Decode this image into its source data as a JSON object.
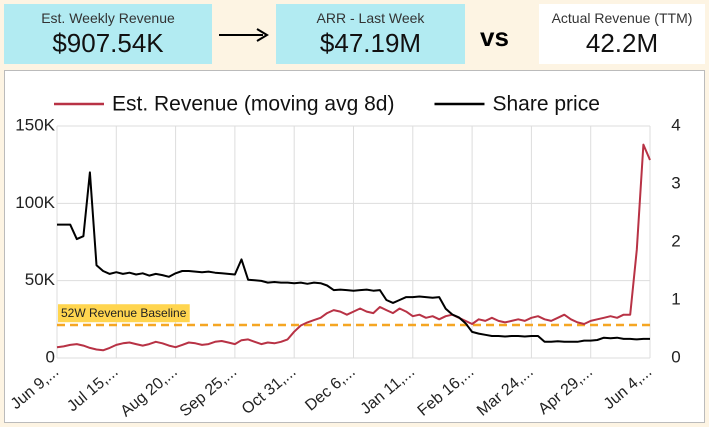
{
  "header": {
    "kpis": [
      {
        "label": "Est. Weekly Revenue",
        "value": "$907.54K"
      },
      {
        "label": "ARR - Last Week",
        "value": "$47.19M"
      },
      {
        "label": "Actual Revenue (TTM)",
        "value": "42.2M"
      }
    ],
    "vs": "vs"
  },
  "chart_data": {
    "type": "line",
    "categories": [
      "Jun 9,...",
      null,
      null,
      null,
      null,
      null,
      null,
      null,
      null,
      "Jul 15,...",
      null,
      null,
      null,
      null,
      null,
      null,
      null,
      null,
      "Aug 20,...",
      null,
      null,
      null,
      null,
      null,
      null,
      null,
      null,
      "Sep 25,...",
      null,
      null,
      null,
      null,
      null,
      null,
      null,
      null,
      "Oct 31,...",
      null,
      null,
      null,
      null,
      null,
      null,
      null,
      null,
      "Dec 6,...",
      null,
      null,
      null,
      null,
      null,
      null,
      null,
      null,
      "Jan 11,...",
      null,
      null,
      null,
      null,
      null,
      null,
      null,
      null,
      "Feb 16,...",
      null,
      null,
      null,
      null,
      null,
      null,
      null,
      null,
      "Mar 24,...",
      null,
      null,
      null,
      null,
      null,
      null,
      null,
      null,
      "Apr 29,...",
      null,
      null,
      null,
      null,
      null,
      null,
      null,
      null,
      "Jun 4,..."
    ],
    "series": [
      {
        "name": "Est. Revenue (moving avg 8d)",
        "color": "#b83245",
        "values": [
          7000,
          7500,
          8500,
          9000,
          8000,
          6500,
          5500,
          5000,
          6500,
          8500,
          9500,
          10000,
          9000,
          8000,
          9000,
          10500,
          9500,
          8000,
          7000,
          8500,
          10000,
          9500,
          8500,
          9000,
          10500,
          11000,
          10000,
          9000,
          11500,
          12000,
          10500,
          9000,
          10000,
          9500,
          10500,
          12000,
          17000,
          21000,
          23000,
          24500,
          26000,
          29000,
          31000,
          30000,
          28000,
          30000,
          32000,
          30000,
          29000,
          33000,
          31000,
          29000,
          32000,
          30000,
          27000,
          28000,
          26000,
          27000,
          25000,
          27000,
          28000,
          26000,
          24000,
          22000,
          25000,
          24000,
          26000,
          24000,
          23000,
          24000,
          25000,
          24000,
          26000,
          27000,
          25000,
          24000,
          26000,
          28000,
          25000,
          23000,
          22000,
          24000,
          25000,
          26000,
          27000,
          26000,
          28000,
          28000,
          70000,
          138000,
          128000
        ]
      },
      {
        "name": "Share price",
        "color": "#000000",
        "axis": "y2",
        "values": [
          2.3,
          2.3,
          2.3,
          2.05,
          2.1,
          3.2,
          1.6,
          1.5,
          1.45,
          1.48,
          1.45,
          1.47,
          1.44,
          1.46,
          1.42,
          1.45,
          1.43,
          1.4,
          1.46,
          1.5,
          1.5,
          1.49,
          1.48,
          1.49,
          1.47,
          1.46,
          1.45,
          1.44,
          1.7,
          1.35,
          1.34,
          1.33,
          1.3,
          1.31,
          1.3,
          1.3,
          1.29,
          1.3,
          1.28,
          1.3,
          1.29,
          1.25,
          1.17,
          1.18,
          1.17,
          1.16,
          1.17,
          1.18,
          1.16,
          1.17,
          1.0,
          0.95,
          1.0,
          1.05,
          1.05,
          1.06,
          1.05,
          1.04,
          1.05,
          0.85,
          0.75,
          0.7,
          0.6,
          0.45,
          0.42,
          0.4,
          0.38,
          0.38,
          0.37,
          0.38,
          0.38,
          0.37,
          0.38,
          0.38,
          0.28,
          0.28,
          0.29,
          0.28,
          0.28,
          0.28,
          0.3,
          0.3,
          0.31,
          0.35,
          0.34,
          0.35,
          0.33,
          0.33,
          0.32,
          0.33,
          0.33
        ]
      }
    ],
    "ylim": [
      0,
      150000
    ],
    "yticks": [
      {
        "value": 0,
        "label": "0"
      },
      {
        "value": 50000,
        "label": "50K"
      },
      {
        "value": 100000,
        "label": "100K"
      },
      {
        "value": 150000,
        "label": "150K"
      }
    ],
    "y2lim": [
      0,
      4
    ],
    "y2ticks": [
      0,
      1,
      2,
      3,
      4
    ],
    "grid": true,
    "legend": "top",
    "baseline": {
      "value": 21300,
      "label": "52W Revenue Baseline",
      "color": "#f5a623"
    }
  }
}
